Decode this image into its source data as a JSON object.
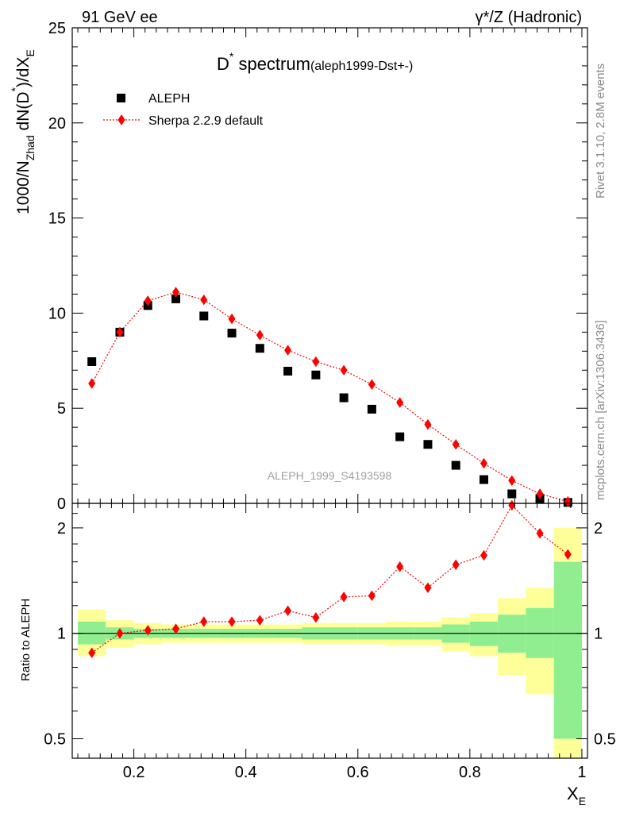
{
  "header": {
    "left": "91 GeV ee",
    "right": "γ*/Z (Hadronic)"
  },
  "side_labels": {
    "rivet": "Rivet 3.1.10,  2.8M events",
    "mcplots": "mcplots.cern.ch [arXiv:1306.3436]"
  },
  "chart_data": [
    {
      "type": "scatter",
      "panel": "main",
      "title_main": "D",
      "title_sup": "*",
      "title_rest": " spectrum",
      "title_paren": "(aleph1999-Dst+-)",
      "ylabel": {
        "pre": "1000/N",
        "sub1": "Zhad",
        "mid": " dN(D",
        "sup": "*",
        "post": ")/dX",
        "sub2": "E"
      },
      "xlabel": {
        "main": "X",
        "sub": "E"
      },
      "watermark": "ALEPH_1999_S4193598",
      "xlim": [
        0.09,
        1.01
      ],
      "ylim": [
        0,
        25
      ],
      "yticks": [
        0,
        5,
        10,
        15,
        20,
        25
      ],
      "legend_position": "top-left",
      "series": [
        {
          "name": "ALEPH",
          "marker": "square",
          "color": "#000000",
          "x": [
            0.125,
            0.175,
            0.225,
            0.275,
            0.325,
            0.375,
            0.425,
            0.475,
            0.525,
            0.575,
            0.625,
            0.675,
            0.725,
            0.775,
            0.825,
            0.875,
            0.925,
            0.975
          ],
          "y": [
            7.45,
            9.0,
            10.4,
            10.75,
            9.85,
            8.95,
            8.15,
            6.95,
            6.75,
            5.55,
            4.95,
            3.5,
            3.1,
            2.0,
            1.25,
            0.5,
            0.25,
            0.05
          ]
        },
        {
          "name": "Sherpa 2.2.9 default",
          "marker": "diamond",
          "color": "#ff0000",
          "x": [
            0.125,
            0.175,
            0.225,
            0.275,
            0.325,
            0.375,
            0.425,
            0.475,
            0.525,
            0.575,
            0.625,
            0.675,
            0.725,
            0.775,
            0.825,
            0.875,
            0.925,
            0.975
          ],
          "y": [
            6.3,
            9.0,
            10.65,
            11.1,
            10.7,
            9.7,
            8.85,
            8.05,
            7.45,
            7.0,
            6.25,
            5.3,
            4.15,
            3.1,
            2.1,
            1.2,
            0.5,
            0.1
          ]
        }
      ]
    },
    {
      "type": "scatter",
      "panel": "ratio",
      "ylabel": "Ratio to ALEPH",
      "scale": "log",
      "ylim": [
        0.44,
        2.35
      ],
      "yticks": [
        0.5,
        1,
        2
      ],
      "xticks": [
        0.2,
        0.4,
        0.6,
        0.8,
        1
      ],
      "bands": {
        "x_edges": [
          0.1,
          0.15,
          0.2,
          0.25,
          0.3,
          0.35,
          0.4,
          0.45,
          0.5,
          0.55,
          0.6,
          0.65,
          0.7,
          0.75,
          0.8,
          0.85,
          0.9,
          0.95,
          1.0
        ],
        "outer_low": [
          0.86,
          0.91,
          0.93,
          0.94,
          0.94,
          0.94,
          0.94,
          0.94,
          0.93,
          0.93,
          0.93,
          0.92,
          0.92,
          0.89,
          0.86,
          0.76,
          0.67,
          0.4
        ],
        "outer_high": [
          1.17,
          1.09,
          1.07,
          1.06,
          1.06,
          1.06,
          1.06,
          1.06,
          1.07,
          1.07,
          1.07,
          1.08,
          1.08,
          1.11,
          1.14,
          1.26,
          1.35,
          2.0
        ],
        "inner_low": [
          0.93,
          0.96,
          0.97,
          0.97,
          0.97,
          0.97,
          0.97,
          0.97,
          0.96,
          0.96,
          0.96,
          0.96,
          0.96,
          0.94,
          0.92,
          0.88,
          0.85,
          0.5
        ],
        "inner_high": [
          1.08,
          1.04,
          1.03,
          1.03,
          1.03,
          1.03,
          1.03,
          1.03,
          1.04,
          1.04,
          1.04,
          1.04,
          1.04,
          1.06,
          1.08,
          1.13,
          1.18,
          1.6
        ],
        "outer_color": "#ffff99",
        "inner_color": "#90ee90"
      },
      "series": [
        {
          "name": "Sherpa 2.2.9 default",
          "marker": "diamond",
          "color": "#ff0000",
          "x": [
            0.125,
            0.175,
            0.225,
            0.275,
            0.325,
            0.375,
            0.425,
            0.475,
            0.525,
            0.575,
            0.625,
            0.675,
            0.725,
            0.775,
            0.825,
            0.875,
            0.925,
            0.975
          ],
          "y": [
            0.88,
            1.0,
            1.02,
            1.03,
            1.08,
            1.08,
            1.09,
            1.16,
            1.11,
            1.27,
            1.28,
            1.55,
            1.35,
            1.57,
            1.67,
            2.32,
            1.93,
            1.68
          ]
        }
      ]
    }
  ]
}
